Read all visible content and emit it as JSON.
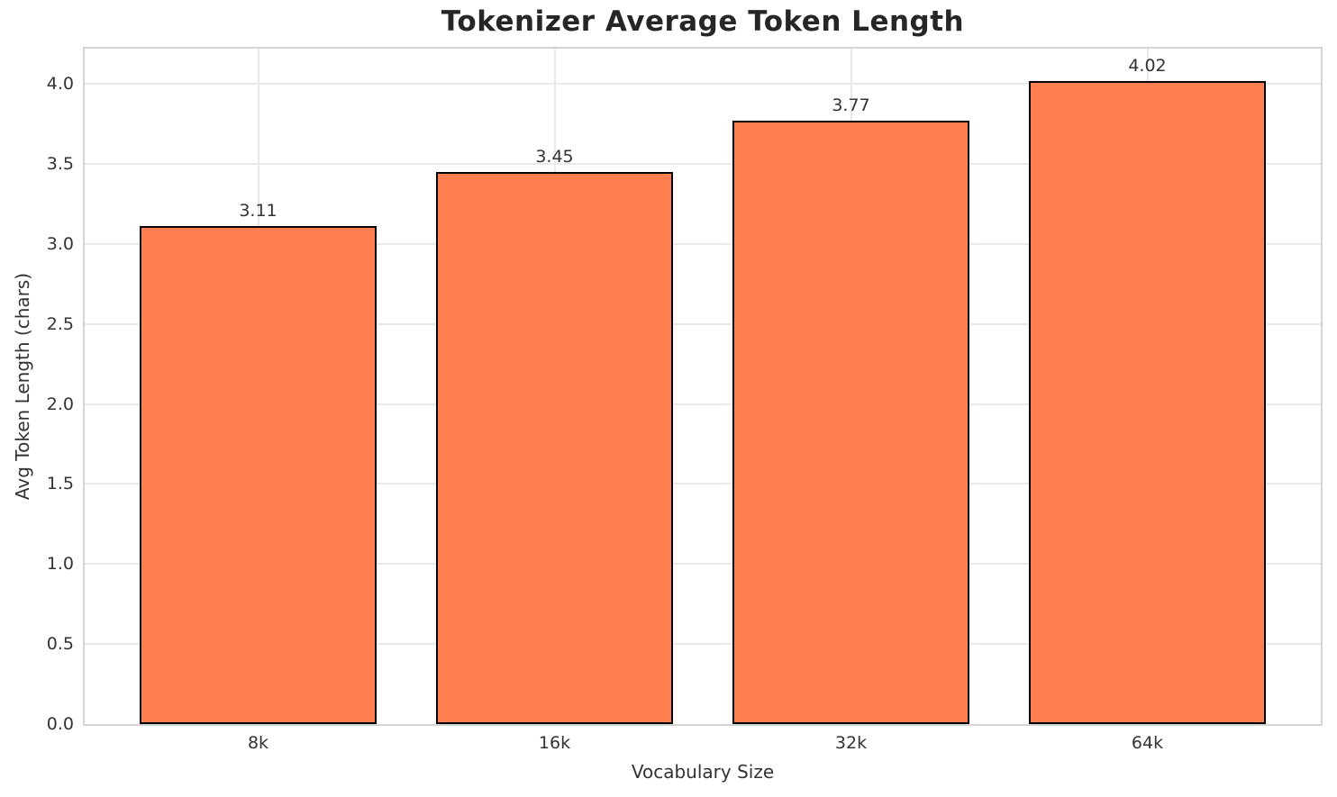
{
  "chart_data": {
    "type": "bar",
    "title": "Tokenizer Average Token Length",
    "xlabel": "Vocabulary Size",
    "ylabel": "Avg Token Length (chars)",
    "categories": [
      "8k",
      "16k",
      "32k",
      "64k"
    ],
    "values": [
      3.11,
      3.45,
      3.77,
      4.02
    ],
    "bar_labels": [
      "3.11",
      "3.45",
      "3.77",
      "4.02"
    ],
    "yticks": [
      0.0,
      0.5,
      1.0,
      1.5,
      2.0,
      2.5,
      3.0,
      3.5,
      4.0
    ],
    "ytick_labels": [
      "0.0",
      "0.5",
      "1.0",
      "1.5",
      "2.0",
      "2.5",
      "3.0",
      "3.5",
      "4.0"
    ],
    "ylim": [
      0,
      4.22
    ],
    "grid": true,
    "legend_position": "none",
    "colors": {
      "bar_fill": "#FF7F50",
      "bar_edge": "#000000",
      "grid": "#E9E9E9",
      "spine": "#D4D4D4",
      "tick_text": "#333333",
      "title_text": "#262626",
      "background": "#FFFFFF"
    }
  }
}
